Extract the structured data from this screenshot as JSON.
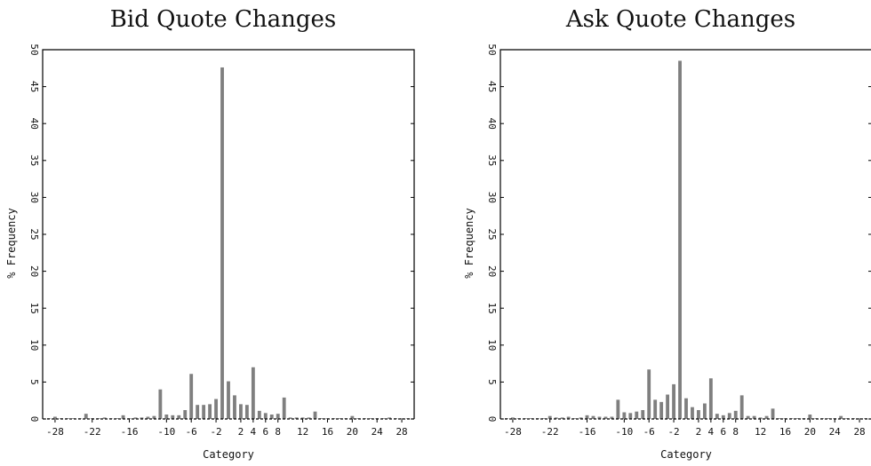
{
  "chart_data": [
    {
      "type": "bar",
      "title": "Bid Quote Changes",
      "xlabel": "Category",
      "ylabel": "% Frequency",
      "xlim": [
        -30,
        30
      ],
      "ylim": [
        0,
        50
      ],
      "xticks": [
        -28,
        -22,
        -16,
        -10,
        -6,
        -2,
        2,
        4,
        6,
        8,
        12,
        16,
        20,
        24,
        28
      ],
      "yticks": [
        0,
        5,
        10,
        15,
        20,
        25,
        30,
        35,
        40,
        45,
        50
      ],
      "grid": false,
      "x": [
        -29,
        -28,
        -27,
        -26,
        -25,
        -24,
        -23,
        -22,
        -21,
        -20,
        -19,
        -18,
        -17,
        -16,
        -15,
        -14,
        -13,
        -12,
        -11,
        -10,
        -9,
        -8,
        -7,
        -6,
        -5,
        -4,
        -3,
        -2,
        -1,
        0,
        1,
        2,
        3,
        4,
        5,
        6,
        7,
        8,
        9,
        10,
        11,
        12,
        13,
        14,
        15,
        16,
        17,
        18,
        19,
        20,
        21,
        22,
        23,
        24,
        25,
        26,
        27,
        28,
        29
      ],
      "values": [
        0.1,
        0.3,
        0.1,
        0.1,
        0.1,
        0.1,
        0.7,
        0.1,
        0.1,
        0.2,
        0.1,
        0.1,
        0.5,
        0.1,
        0.2,
        0.2,
        0.3,
        0.4,
        4.0,
        0.6,
        0.5,
        0.5,
        1.2,
        6.1,
        1.9,
        1.9,
        2.0,
        2.7,
        47.6,
        5.1,
        3.2,
        2.0,
        1.9,
        7.0,
        1.1,
        0.8,
        0.6,
        0.7,
        2.9,
        0.2,
        0.2,
        0.2,
        0.2,
        1.0,
        0.1,
        0.1,
        0.1,
        0.1,
        0.1,
        0.4,
        0.1,
        0.1,
        0.1,
        0.1,
        0.1,
        0.2,
        0.1,
        0.1,
        0.1
      ]
    },
    {
      "type": "bar",
      "title": "Ask Quote Changes",
      "xlabel": "Category",
      "ylabel": "% Frequency",
      "xlim": [
        -30,
        30
      ],
      "ylim": [
        0,
        50
      ],
      "xticks": [
        -28,
        -22,
        -16,
        -10,
        -6,
        -2,
        2,
        4,
        6,
        8,
        12,
        16,
        20,
        24,
        28
      ],
      "yticks": [
        0,
        5,
        10,
        15,
        20,
        25,
        30,
        35,
        40,
        45,
        50
      ],
      "grid": false,
      "x": [
        -29,
        -28,
        -27,
        -26,
        -25,
        -24,
        -23,
        -22,
        -21,
        -20,
        -19,
        -18,
        -17,
        -16,
        -15,
        -14,
        -13,
        -12,
        -11,
        -10,
        -9,
        -8,
        -7,
        -6,
        -5,
        -4,
        -3,
        -2,
        -1,
        0,
        1,
        2,
        3,
        4,
        5,
        6,
        7,
        8,
        9,
        10,
        11,
        12,
        13,
        14,
        15,
        16,
        17,
        18,
        19,
        20,
        21,
        22,
        23,
        24,
        25,
        26,
        27,
        28,
        29
      ],
      "values": [
        0.1,
        0.2,
        0.1,
        0.1,
        0.1,
        0.1,
        0.1,
        0.4,
        0.2,
        0.2,
        0.3,
        0.1,
        0.2,
        0.5,
        0.4,
        0.3,
        0.3,
        0.3,
        2.6,
        0.9,
        0.8,
        1.0,
        1.2,
        6.7,
        2.6,
        2.3,
        3.3,
        4.7,
        48.5,
        2.8,
        1.6,
        1.2,
        2.1,
        5.5,
        0.7,
        0.5,
        0.8,
        1.1,
        3.2,
        0.4,
        0.4,
        0.2,
        0.4,
        1.4,
        0.1,
        0.1,
        0.1,
        0.1,
        0.1,
        0.6,
        0.1,
        0.1,
        0.1,
        0.1,
        0.4,
        0.1,
        0.1,
        0.1,
        0.1
      ]
    }
  ]
}
